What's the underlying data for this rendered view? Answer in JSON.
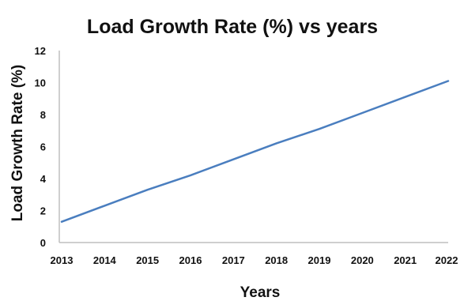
{
  "chart_data": {
    "type": "line",
    "title": "Load Growth Rate (%) vs years",
    "xlabel": "Years",
    "ylabel": "Load Growth Rate (%)",
    "categories": [
      "2013",
      "2014",
      "2015",
      "2016",
      "2017",
      "2018",
      "2019",
      "2020",
      "2021",
      "2022"
    ],
    "series": [
      {
        "values": [
          1.3,
          2.3,
          3.3,
          4.2,
          5.2,
          6.2,
          7.1,
          8.1,
          9.1,
          10.1
        ]
      }
    ],
    "ylim": [
      0,
      12
    ],
    "yticks": [
      "0",
      "2",
      "4",
      "6",
      "8",
      "10",
      "12"
    ],
    "grid": false,
    "legend": "none",
    "colors": {
      "line": "#4a7ebf",
      "axis": "#bfbfbf",
      "text": "#111111"
    }
  }
}
